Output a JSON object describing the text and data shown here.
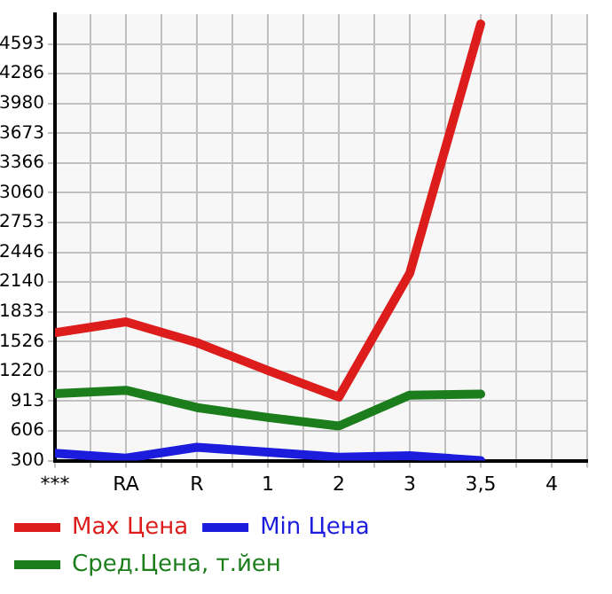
{
  "chart_data": {
    "type": "line",
    "categories": [
      "***",
      "RA",
      "R",
      "1",
      "2",
      "3",
      "3,5",
      "4"
    ],
    "series": [
      {
        "name": "Max Цена",
        "color": "#dd1c1c",
        "values": [
          1619,
          1731,
          1516,
          1230,
          955,
          2232,
          4800,
          null
        ]
      },
      {
        "name": "Min Цена",
        "color": "#1c1cdd",
        "values": [
          377,
          326,
          438,
          387,
          336,
          351,
          300,
          null
        ]
      },
      {
        "name": "Сред.Цена, т.йен",
        "color": "#1c7d1c",
        "values": [
          990,
          1025,
          847,
          745,
          657,
          975,
          985,
          null
        ]
      }
    ],
    "ylim": [
      300,
      4900
    ],
    "yticks": [
      300,
      606,
      913,
      1220,
      1526,
      1833,
      2140,
      2446,
      2753,
      3060,
      3366,
      3673,
      3980,
      4286,
      4593
    ],
    "grid": true,
    "legend": "bottom",
    "marker": "none",
    "line_style": "solid"
  }
}
